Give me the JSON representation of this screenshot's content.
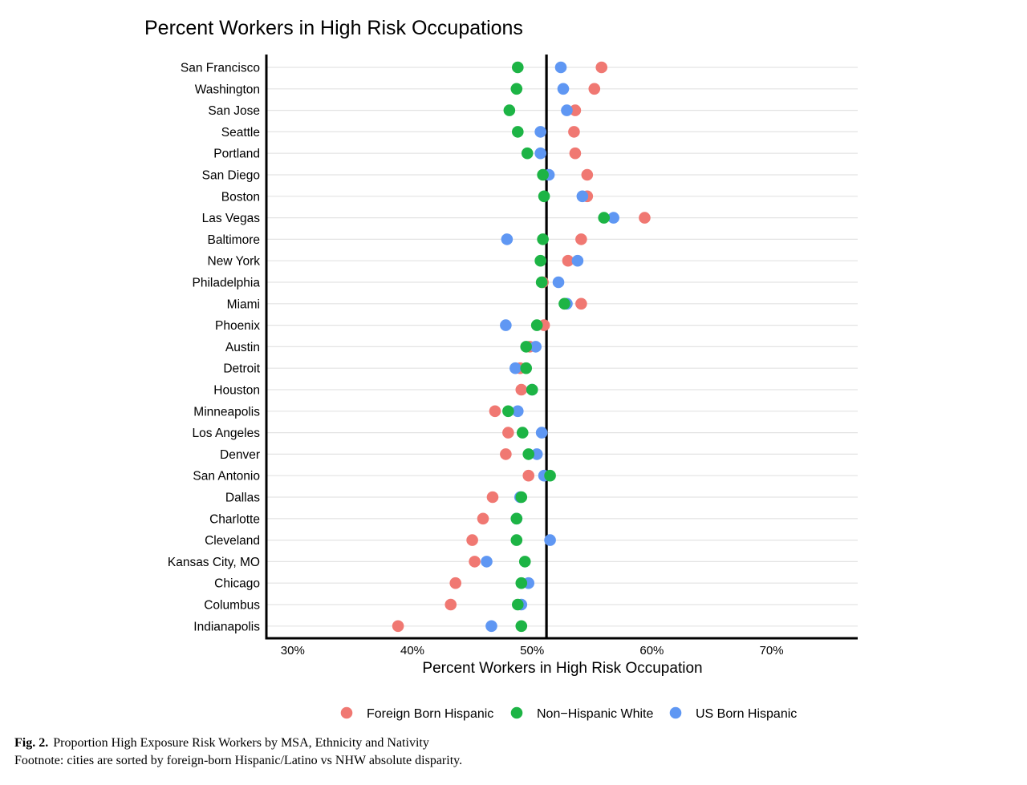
{
  "caption": {
    "figure_label": "Fig. 2.",
    "text": "Proportion High Exposure Risk Workers by MSA, Ethnicity and Nativity",
    "footnote": "Footnote: cities are sorted by foreign-born Hispanic/Latino vs NHW absolute disparity."
  },
  "chart_data": {
    "type": "scatter",
    "title": "Percent Workers in High Risk Occupations",
    "xlabel": "Percent Workers in High Risk Occupation",
    "ylabel": "",
    "xlim": [
      27.8,
      77.2
    ],
    "xticks": [
      30,
      40,
      50,
      60,
      70
    ],
    "xtick_labels": [
      "30%",
      "40%",
      "50%",
      "60%",
      "70%"
    ],
    "reference_line": 51.2,
    "grid": "horizontal",
    "legend_position": "bottom",
    "categories": [
      "San Francisco",
      "Washington",
      "San Jose",
      "Seattle",
      "Portland",
      "San Diego",
      "Boston",
      "Las Vegas",
      "Baltimore",
      "New York",
      "Philadelphia",
      "Miami",
      "Phoenix",
      "Austin",
      "Detroit",
      "Houston",
      "Minneapolis",
      "Los Angeles",
      "Denver",
      "San Antonio",
      "Dallas",
      "Charlotte",
      "Cleveland",
      "Kansas City, MO",
      "Chicago",
      "Columbus",
      "Indianapolis"
    ],
    "series": [
      {
        "name": "Foreign Born Hispanic",
        "color": "#F07872",
        "values": [
          55.8,
          55.2,
          53.6,
          53.5,
          53.6,
          54.6,
          54.6,
          59.4,
          54.1,
          53.0,
          50.9,
          54.1,
          51.0,
          49.8,
          49.0,
          49.1,
          46.9,
          48.0,
          47.8,
          49.7,
          46.7,
          45.9,
          45.0,
          45.2,
          43.6,
          43.2,
          38.8
        ]
      },
      {
        "name": "US Born Hispanic",
        "color": "#5F97F3",
        "values": [
          52.4,
          52.6,
          52.9,
          50.7,
          50.7,
          51.4,
          54.2,
          56.8,
          47.9,
          53.8,
          52.2,
          52.9,
          47.8,
          50.3,
          48.6,
          50.0,
          48.8,
          50.8,
          50.4,
          51.0,
          49.0,
          48.7,
          51.5,
          46.2,
          49.7,
          49.1,
          46.6
        ]
      },
      {
        "name": "Non−Hispanic White",
        "color": "#1DB445",
        "values": [
          48.8,
          48.7,
          48.1,
          48.8,
          49.6,
          50.9,
          51.0,
          56.0,
          50.9,
          50.7,
          50.8,
          52.7,
          50.4,
          49.5,
          49.5,
          50.0,
          48.0,
          49.2,
          49.7,
          51.5,
          49.1,
          48.7,
          48.7,
          49.4,
          49.1,
          48.8,
          49.1
        ]
      }
    ]
  }
}
